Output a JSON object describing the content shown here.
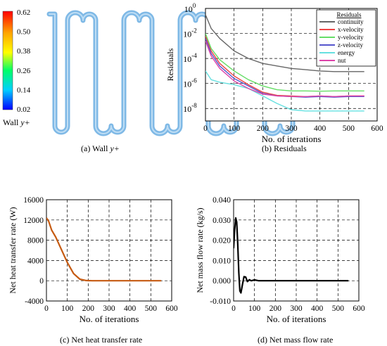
{
  "panel_a": {
    "caption": "(a) Wall ",
    "caption_var": "y+",
    "colorbar": {
      "ticks": [
        "0.62",
        "0.50",
        "0.38",
        "0.26",
        "0.14",
        "0.02"
      ],
      "label": "Wall ",
      "label_var": "y+",
      "colors": [
        "#ff0000",
        "#ffa500",
        "#ffff00",
        "#00ff66",
        "#00cfff",
        "#0000ff"
      ]
    },
    "pipe_color": "#7fb9e6"
  },
  "chart_data": [
    {
      "id": "residuals",
      "type": "line",
      "caption": "(b) Residuals",
      "xlabel": "No. of iterations",
      "ylabel": "Residuals",
      "xlim": [
        0,
        600
      ],
      "x_ticks": [
        "0",
        "100",
        "200",
        "300",
        "400",
        "500",
        "600"
      ],
      "y_log": true,
      "ylim_exp": [
        -9,
        0
      ],
      "y_tick_bases": [
        "10",
        "10",
        "10",
        "10",
        "10"
      ],
      "y_tick_exps": [
        "0",
        "-2",
        "-4",
        "-6",
        "-8"
      ],
      "legend": {
        "title": "Residuals",
        "position": "top-right"
      },
      "grid": true,
      "series": [
        {
          "name": "continuity",
          "color": "#666666",
          "points": [
            [
              0,
              -0.5
            ],
            [
              20,
              -1.6
            ],
            [
              50,
              -2.4
            ],
            [
              100,
              -3.4
            ],
            [
              150,
              -4.0
            ],
            [
              200,
              -4.4
            ],
            [
              250,
              -4.6
            ],
            [
              300,
              -4.8
            ],
            [
              350,
              -4.9
            ],
            [
              400,
              -5.0
            ],
            [
              450,
              -5.05
            ],
            [
              500,
              -5.05
            ],
            [
              555,
              -5.05
            ]
          ]
        },
        {
          "name": "x-velocity",
          "color": "#ee4444",
          "points": [
            [
              0,
              -2.2
            ],
            [
              20,
              -3.4
            ],
            [
              50,
              -4.4
            ],
            [
              100,
              -5.4
            ],
            [
              150,
              -6.1
            ],
            [
              200,
              -6.7
            ],
            [
              250,
              -6.95
            ],
            [
              300,
              -7.0
            ],
            [
              350,
              -7.05
            ],
            [
              400,
              -7.0
            ],
            [
              450,
              -7.05
            ],
            [
              500,
              -7.0
            ],
            [
              555,
              -7.0
            ]
          ]
        },
        {
          "name": "y-velocity",
          "color": "#66dd66",
          "points": [
            [
              0,
              -2.0
            ],
            [
              20,
              -3.2
            ],
            [
              50,
              -4.1
            ],
            [
              100,
              -5.0
            ],
            [
              150,
              -5.7
            ],
            [
              200,
              -6.2
            ],
            [
              250,
              -6.5
            ],
            [
              300,
              -6.6
            ],
            [
              350,
              -6.6
            ],
            [
              400,
              -6.62
            ],
            [
              450,
              -6.6
            ],
            [
              500,
              -6.6
            ],
            [
              555,
              -6.6
            ]
          ]
        },
        {
          "name": "z-velocity",
          "color": "#5555cc",
          "points": [
            [
              0,
              -2.4
            ],
            [
              20,
              -3.6
            ],
            [
              50,
              -4.6
            ],
            [
              100,
              -5.6
            ],
            [
              150,
              -6.2
            ],
            [
              200,
              -6.8
            ],
            [
              250,
              -7.0
            ],
            [
              300,
              -7.05
            ],
            [
              350,
              -7.1
            ],
            [
              400,
              -7.05
            ],
            [
              450,
              -7.1
            ],
            [
              500,
              -7.05
            ],
            [
              555,
              -7.05
            ]
          ]
        },
        {
          "name": "energy",
          "color": "#66e0e0",
          "points": [
            [
              0,
              -5.0
            ],
            [
              20,
              -5.7
            ],
            [
              50,
              -5.9
            ],
            [
              100,
              -6.1
            ],
            [
              150,
              -6.4
            ],
            [
              200,
              -7.0
            ],
            [
              250,
              -7.6
            ],
            [
              300,
              -8.1
            ],
            [
              350,
              -8.2
            ],
            [
              400,
              -8.2
            ],
            [
              450,
              -8.2
            ],
            [
              500,
              -8.2
            ],
            [
              555,
              -8.2
            ]
          ]
        },
        {
          "name": "nut",
          "color": "#dd44aa",
          "points": [
            [
              0,
              -2.6
            ],
            [
              20,
              -3.8
            ],
            [
              50,
              -4.8
            ],
            [
              100,
              -5.8
            ],
            [
              150,
              -6.4
            ],
            [
              200,
              -6.85
            ],
            [
              250,
              -7.0
            ],
            [
              300,
              -7.05
            ],
            [
              350,
              -7.05
            ],
            [
              400,
              -7.0
            ],
            [
              450,
              -7.05
            ],
            [
              500,
              -7.0
            ],
            [
              555,
              -7.0
            ]
          ]
        }
      ]
    },
    {
      "id": "heat",
      "type": "line",
      "caption": "(c) Net heat transfer rate",
      "xlabel": "No. of iterations",
      "ylabel": "Net heat transfer rate (W)",
      "xlim": [
        0,
        600
      ],
      "ylim": [
        -4000,
        16000
      ],
      "x_ticks": [
        "0",
        "100",
        "200",
        "300",
        "400",
        "500",
        "600"
      ],
      "y_ticks": [
        "16000",
        "12000",
        "8000",
        "4000",
        "0",
        "-4000"
      ],
      "grid": true,
      "series": [
        {
          "color": "#c55a11",
          "points": [
            [
              0,
              12400
            ],
            [
              10,
              11800
            ],
            [
              25,
              10000
            ],
            [
              45,
              8600
            ],
            [
              70,
              6300
            ],
            [
              100,
              3600
            ],
            [
              130,
              1400
            ],
            [
              160,
              300
            ],
            [
              190,
              40
            ],
            [
              220,
              0
            ],
            [
              300,
              0
            ],
            [
              400,
              0
            ],
            [
              550,
              0
            ]
          ]
        }
      ]
    },
    {
      "id": "mass",
      "type": "line",
      "caption": "(d) Net mass flow rate",
      "xlabel": "No. of iterations",
      "ylabel": "Net mass flow rate (kg/s)",
      "xlim": [
        0,
        600
      ],
      "ylim": [
        -0.01,
        0.04
      ],
      "x_ticks": [
        "0",
        "100",
        "200",
        "300",
        "400",
        "500",
        "600"
      ],
      "y_ticks": [
        "0.040",
        "0.030",
        "0.020",
        "0.010",
        "0.000",
        "-0.010"
      ],
      "grid": true,
      "series": [
        {
          "color": "#000000",
          "points": [
            [
              0,
              0.016
            ],
            [
              5,
              0.025
            ],
            [
              10,
              0.031
            ],
            [
              15,
              0.029
            ],
            [
              20,
              0.018
            ],
            [
              25,
              0.004
            ],
            [
              30,
              -0.005
            ],
            [
              35,
              -0.006
            ],
            [
              42,
              -0.002
            ],
            [
              50,
              0.002
            ],
            [
              58,
              0.0018
            ],
            [
              66,
              -0.0004
            ],
            [
              75,
              0.0005
            ],
            [
              85,
              0.0
            ],
            [
              100,
              0.0004
            ],
            [
              120,
              0.0
            ],
            [
              200,
              0.0
            ],
            [
              300,
              0.0
            ],
            [
              400,
              0.0
            ],
            [
              550,
              0.0
            ]
          ]
        }
      ]
    }
  ]
}
